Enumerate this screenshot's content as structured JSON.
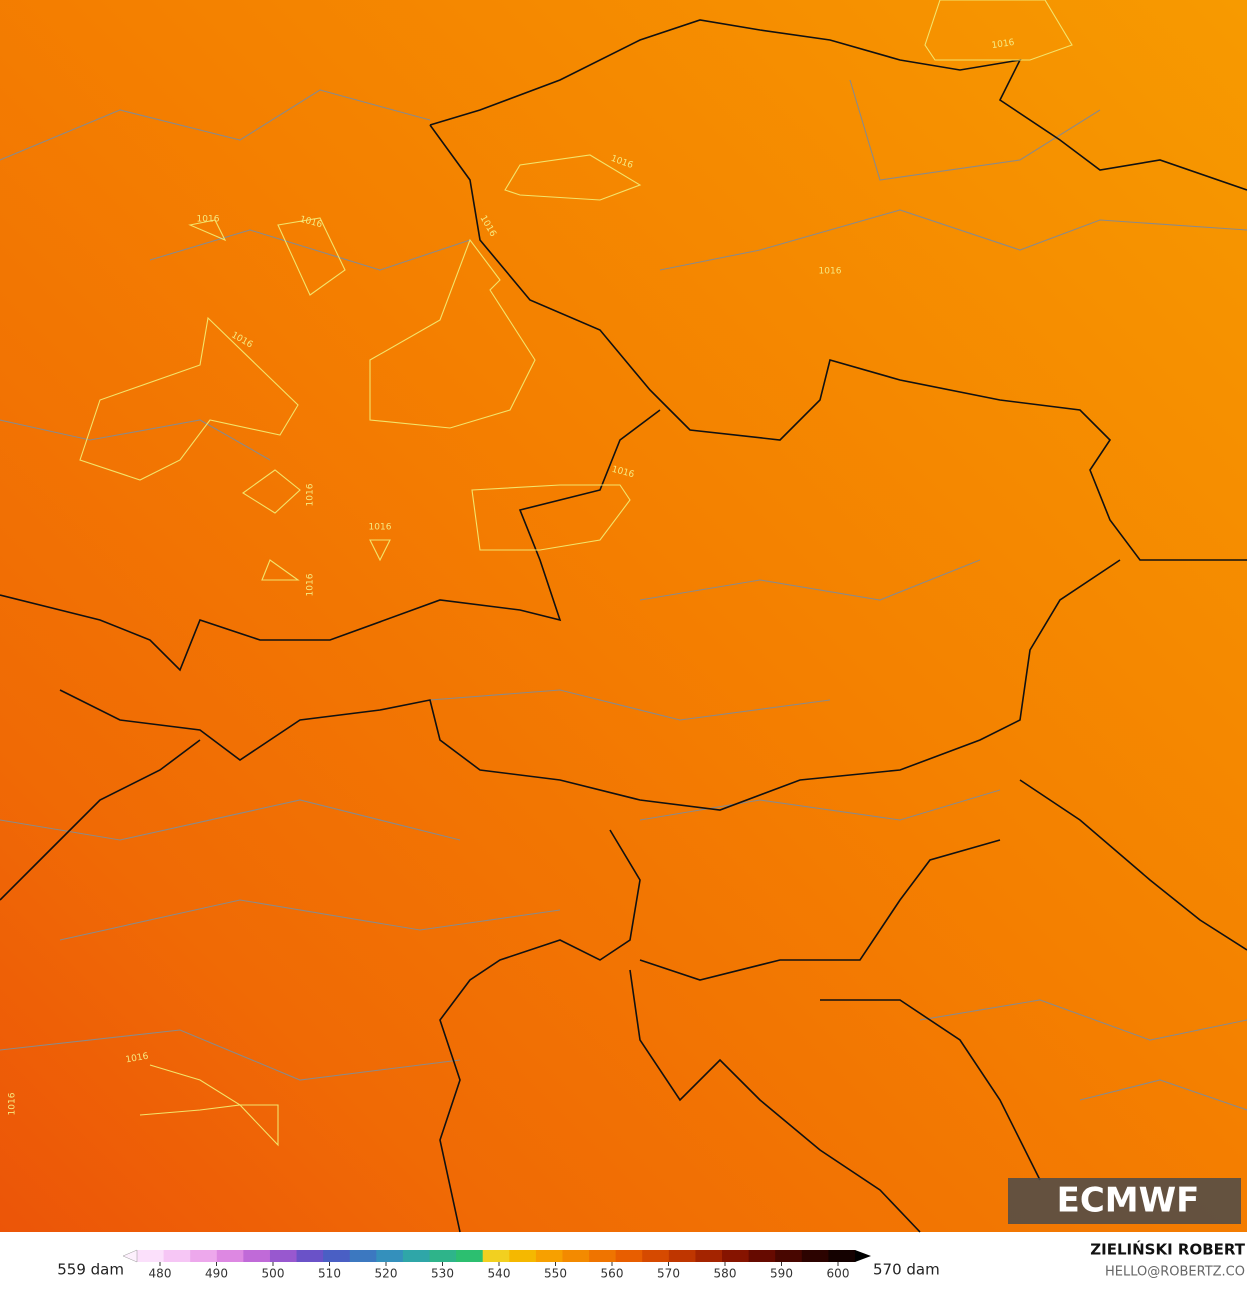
{
  "map": {
    "contour_labels": [
      "1016",
      "1016",
      "1016",
      "1016",
      "1016",
      "1016",
      "1016",
      "1016",
      "1016",
      "1016",
      "1016",
      "1016",
      "1016"
    ],
    "logo": "ECMWF"
  },
  "colorbar": {
    "min_label": "559 dam",
    "max_label": "570 dam",
    "ticks": [
      480,
      490,
      500,
      510,
      520,
      530,
      540,
      550,
      560,
      570,
      580,
      590,
      600
    ],
    "colors": [
      "#fbe0fb",
      "#f6c6f5",
      "#eda8ec",
      "#dd88e2",
      "#c06ad8",
      "#9858cf",
      "#6a52c8",
      "#4a5fc4",
      "#3c78c0",
      "#3490bc",
      "#2fa6a8",
      "#2eb48a",
      "#2cbf70",
      "#f2d020",
      "#f5b800",
      "#f7a000",
      "#f38a00",
      "#ef7400",
      "#e85e00",
      "#d64a00",
      "#bf3600",
      "#a42400",
      "#861400",
      "#660a00",
      "#480600",
      "#2c0300",
      "#140100"
    ]
  },
  "footer": {
    "author": "ZIELIŃSKI ROBERT",
    "contact": "HELLO@ROBERTZ.CO"
  }
}
